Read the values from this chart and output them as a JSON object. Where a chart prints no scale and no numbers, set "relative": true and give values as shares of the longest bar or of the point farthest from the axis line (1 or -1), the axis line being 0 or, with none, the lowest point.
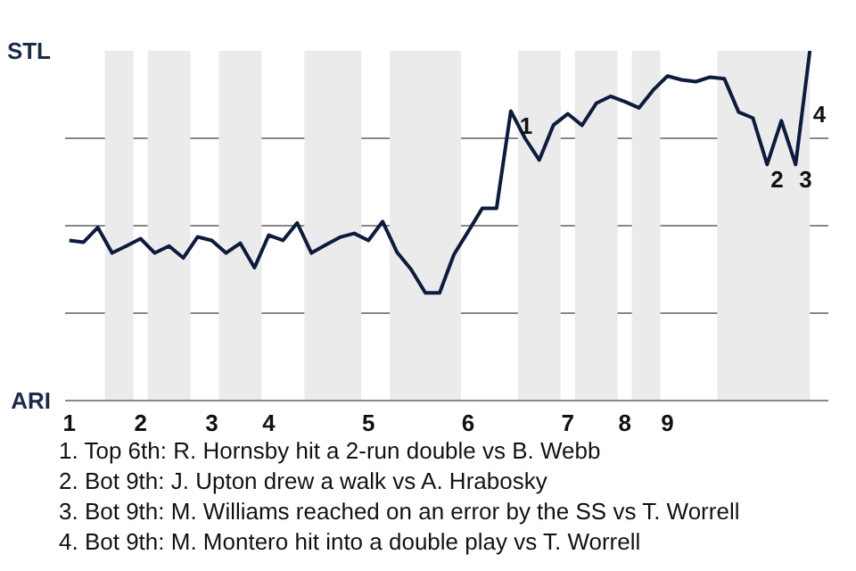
{
  "chart_data": {
    "type": "line",
    "relative": true,
    "categories": [
      "1",
      null,
      null,
      null,
      null,
      "2",
      null,
      null,
      null,
      null,
      "3",
      null,
      null,
      null,
      "4",
      null,
      null,
      null,
      null,
      null,
      null,
      "5",
      null,
      null,
      null,
      null,
      null,
      null,
      "6",
      null,
      null,
      null,
      null,
      null,
      null,
      "7",
      null,
      null,
      null,
      "8",
      null,
      null,
      "9",
      null,
      null,
      null,
      null,
      null,
      null,
      null,
      null,
      null,
      null
    ],
    "series": [
      {
        "color": "#0d1b3e",
        "values": [
          0.458,
          0.453,
          0.495,
          0.422,
          0.442,
          0.463,
          0.422,
          0.442,
          0.408,
          0.468,
          0.458,
          0.422,
          0.45,
          0.38,
          0.473,
          0.458,
          0.508,
          0.422,
          0.445,
          0.467,
          0.478,
          0.458,
          0.512,
          0.425,
          0.375,
          0.308,
          0.308,
          0.417,
          0.483,
          0.55,
          0.55,
          0.828,
          0.75,
          0.688,
          0.788,
          0.82,
          0.787,
          0.85,
          0.87,
          0.855,
          0.837,
          0.888,
          0.928,
          0.917,
          0.912,
          0.925,
          0.92,
          0.825,
          0.808,
          0.675,
          0.8,
          0.675,
          1
        ]
      }
    ],
    "grid": "y",
    "line_style": "solid",
    "annotations": [
      "STL",
      "ARI",
      "1",
      "2",
      "3",
      "4",
      "1. Top 6th: R. Hornsby hit a 2-run double vs B. Webb",
      "2. Bot 9th: J. Upton drew a walk vs A. Hrabosky",
      "3. Bot 9th: M. Williams reached on an error by the SS vs T. Worrell",
      "4. Bot 9th: M. Montero hit into a double play vs T. Worrell"
    ]
  }
}
